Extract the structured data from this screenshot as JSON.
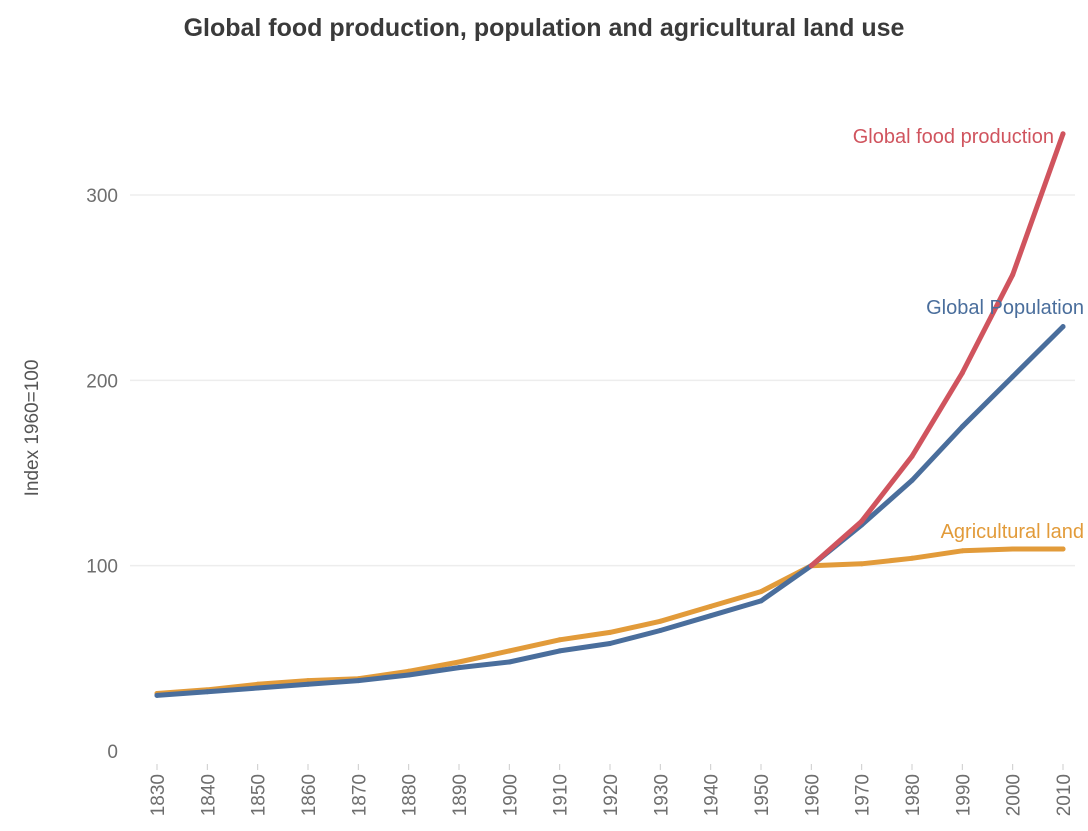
{
  "chart_data": {
    "type": "line",
    "title": "Global food production, population and agricultural land use",
    "xlabel": "",
    "ylabel": "Index 1960=100",
    "x": [
      1830,
      1840,
      1850,
      1860,
      1870,
      1880,
      1890,
      1900,
      1910,
      1920,
      1930,
      1940,
      1950,
      1960,
      1970,
      1980,
      1990,
      2000,
      2010
    ],
    "x_tick_labels": [
      "1830",
      "1840",
      "1850",
      "1860",
      "1870",
      "1880",
      "1890",
      "1900",
      "1910",
      "1920",
      "1930",
      "1940",
      "1950",
      "1960",
      "1970",
      "1980",
      "1990",
      "2000",
      "2010"
    ],
    "y_ticks": [
      0,
      100,
      200,
      300
    ],
    "y_tick_labels": [
      "0",
      "100",
      "200",
      "300"
    ],
    "xlim": [
      1830,
      2010
    ],
    "ylim": [
      -10,
      345
    ],
    "grid": "horizontal",
    "legend": "inline labels at series ends",
    "series": [
      {
        "name": "Agricultural land",
        "color": "#e29b3a",
        "values": [
          31,
          33,
          36,
          38,
          39,
          43,
          48,
          54,
          60,
          64,
          70,
          78,
          86,
          100,
          101,
          104,
          108,
          109,
          109
        ]
      },
      {
        "name": "Global Population",
        "color": "#4a6e9c",
        "values": [
          30,
          32,
          34,
          36,
          38,
          41,
          45,
          48,
          54,
          58,
          65,
          73,
          81,
          100,
          122,
          146,
          175,
          202,
          229
        ]
      },
      {
        "name": "Global food production",
        "color": "#d0545e",
        "values": [
          null,
          null,
          null,
          null,
          null,
          null,
          null,
          null,
          null,
          null,
          null,
          null,
          null,
          100,
          124,
          159,
          204,
          257,
          333
        ]
      }
    ]
  }
}
